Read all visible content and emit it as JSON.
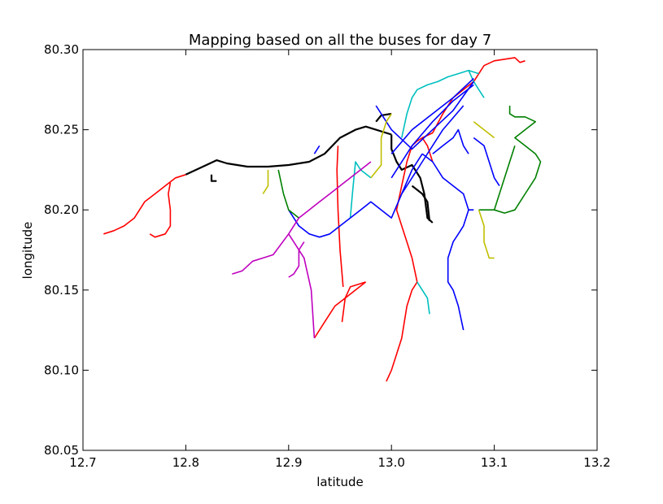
{
  "chart_data": {
    "type": "line",
    "title": "Mapping based on all the buses for day 7",
    "xlabel": "latitude",
    "ylabel": "longitude",
    "xlim": [
      12.7,
      13.2
    ],
    "ylim": [
      80.05,
      80.3
    ],
    "xticks": [
      "12.7",
      "12.8",
      "12.9",
      "13.0",
      "13.1",
      "13.2"
    ],
    "yticks": [
      "80.05",
      "80.10",
      "80.15",
      "80.20",
      "80.25",
      "80.30"
    ],
    "grid": false,
    "legend": "none",
    "series": [
      {
        "color": "#ff0000",
        "points": [
          [
            12.72,
            80.185
          ],
          [
            12.73,
            80.187
          ],
          [
            12.74,
            80.19
          ],
          [
            12.75,
            80.195
          ],
          [
            12.76,
            80.205
          ],
          [
            12.77,
            80.21
          ],
          [
            12.78,
            80.215
          ],
          [
            12.79,
            80.22
          ],
          [
            12.8,
            80.222
          ]
        ]
      },
      {
        "color": "#ff0000",
        "points": [
          [
            12.765,
            80.185
          ],
          [
            12.77,
            80.183
          ],
          [
            12.78,
            80.185
          ],
          [
            12.785,
            80.19
          ],
          [
            12.785,
            80.2
          ],
          [
            12.783,
            80.21
          ],
          [
            12.785,
            80.217
          ]
        ]
      },
      {
        "color": "#000000",
        "points": [
          [
            12.8,
            80.222
          ],
          [
            12.82,
            80.228
          ],
          [
            12.83,
            80.231
          ],
          [
            12.84,
            80.229
          ],
          [
            12.86,
            80.227
          ],
          [
            12.88,
            80.227
          ],
          [
            12.9,
            80.228
          ],
          [
            12.92,
            80.23
          ],
          [
            12.935,
            80.235
          ],
          [
            12.95,
            80.245
          ],
          [
            12.965,
            80.25
          ],
          [
            12.975,
            80.252
          ],
          [
            12.985,
            80.25
          ],
          [
            13.0,
            80.247
          ]
        ]
      },
      {
        "color": "#000000",
        "points": [
          [
            12.825,
            80.222
          ],
          [
            12.825,
            80.218
          ],
          [
            12.83,
            80.218
          ]
        ]
      },
      {
        "color": "#000000",
        "points": [
          [
            12.985,
            80.255
          ],
          [
            12.99,
            80.259
          ],
          [
            13.0,
            80.26
          ]
        ]
      },
      {
        "color": "#000000",
        "points": [
          [
            13.0,
            80.247
          ],
          [
            13.0,
            80.238
          ],
          [
            13.005,
            80.23
          ],
          [
            13.01,
            80.225
          ],
          [
            13.02,
            80.228
          ],
          [
            13.028,
            80.22
          ],
          [
            13.032,
            80.21
          ],
          [
            13.035,
            80.195
          ],
          [
            13.04,
            80.192
          ]
        ]
      },
      {
        "color": "#000000",
        "points": [
          [
            13.02,
            80.215
          ],
          [
            13.03,
            80.21
          ],
          [
            13.035,
            80.205
          ],
          [
            13.037,
            80.193
          ]
        ]
      },
      {
        "color": "#ff0000",
        "points": [
          [
            12.975,
            80.155
          ],
          [
            12.965,
            80.15
          ],
          [
            12.955,
            80.145
          ],
          [
            12.945,
            80.14
          ],
          [
            12.935,
            80.13
          ],
          [
            12.925,
            80.12
          ]
        ]
      },
      {
        "color": "#ff0000",
        "points": [
          [
            12.975,
            80.155
          ],
          [
            12.96,
            80.152
          ],
          [
            12.955,
            80.145
          ],
          [
            12.952,
            80.13
          ]
        ]
      },
      {
        "color": "#ff0000",
        "points": [
          [
            12.953,
            80.152
          ],
          [
            12.95,
            80.175
          ],
          [
            12.948,
            80.2
          ],
          [
            12.947,
            80.225
          ],
          [
            12.948,
            80.24
          ]
        ]
      },
      {
        "color": "#ff0000",
        "points": [
          [
            12.995,
            80.093
          ],
          [
            13.0,
            80.1
          ],
          [
            13.005,
            80.11
          ],
          [
            13.01,
            80.12
          ],
          [
            13.015,
            80.14
          ],
          [
            13.02,
            80.15
          ],
          [
            13.025,
            80.155
          ]
        ]
      },
      {
        "color": "#ff0000",
        "points": [
          [
            13.025,
            80.155
          ],
          [
            13.02,
            80.17
          ],
          [
            13.015,
            80.18
          ],
          [
            13.01,
            80.19
          ],
          [
            13.005,
            80.2
          ],
          [
            13.01,
            80.215
          ],
          [
            13.015,
            80.23
          ],
          [
            13.02,
            80.24
          ],
          [
            13.025,
            80.243
          ],
          [
            13.03,
            80.245
          ],
          [
            13.035,
            80.24
          ],
          [
            13.04,
            80.23
          ]
        ]
      },
      {
        "color": "#ff0000",
        "points": [
          [
            13.03,
            80.245
          ],
          [
            13.04,
            80.248
          ],
          [
            13.05,
            80.26
          ],
          [
            13.06,
            80.27
          ],
          [
            13.07,
            80.275
          ],
          [
            13.08,
            80.28
          ]
        ]
      },
      {
        "color": "#ff0000",
        "points": [
          [
            13.08,
            80.28
          ],
          [
            13.09,
            80.29
          ],
          [
            13.1,
            80.293
          ],
          [
            13.12,
            80.295
          ],
          [
            13.125,
            80.292
          ],
          [
            13.13,
            80.293
          ]
        ]
      },
      {
        "color": "#00bfbf",
        "points": [
          [
            12.98,
            80.22
          ],
          [
            12.97,
            80.225
          ],
          [
            12.965,
            80.23
          ],
          [
            12.962,
            80.21
          ],
          [
            12.96,
            80.195
          ]
        ]
      },
      {
        "color": "#00bfbf",
        "points": [
          [
            13.025,
            80.155
          ],
          [
            13.03,
            80.15
          ],
          [
            13.035,
            80.145
          ],
          [
            13.037,
            80.135
          ]
        ]
      },
      {
        "color": "#00bfbf",
        "points": [
          [
            13.01,
            80.245
          ],
          [
            13.015,
            80.26
          ],
          [
            13.02,
            80.27
          ],
          [
            13.025,
            80.275
          ],
          [
            13.035,
            80.278
          ],
          [
            13.045,
            80.28
          ],
          [
            13.055,
            80.283
          ],
          [
            13.065,
            80.285
          ],
          [
            13.075,
            80.287
          ],
          [
            13.085,
            80.285
          ]
        ]
      },
      {
        "color": "#00bfbf",
        "points": [
          [
            13.075,
            80.287
          ],
          [
            13.08,
            80.28
          ],
          [
            13.085,
            80.275
          ],
          [
            13.09,
            80.27
          ]
        ]
      },
      {
        "color": "#0000ff",
        "points": [
          [
            13.07,
            80.125
          ],
          [
            13.065,
            80.14
          ],
          [
            13.06,
            80.15
          ],
          [
            13.055,
            80.155
          ],
          [
            13.055,
            80.17
          ],
          [
            13.06,
            80.18
          ],
          [
            13.065,
            80.185
          ],
          [
            13.07,
            80.19
          ],
          [
            13.075,
            80.2
          ],
          [
            13.08,
            80.2
          ]
        ]
      },
      {
        "color": "#0000ff",
        "points": [
          [
            12.9,
            80.2
          ],
          [
            12.91,
            80.19
          ],
          [
            12.92,
            80.185
          ],
          [
            12.93,
            80.183
          ],
          [
            12.94,
            80.185
          ],
          [
            12.95,
            80.19
          ],
          [
            12.96,
            80.195
          ],
          [
            12.97,
            80.2
          ],
          [
            12.98,
            80.205
          ],
          [
            12.99,
            80.2
          ],
          [
            13.0,
            80.195
          ],
          [
            13.01,
            80.21
          ],
          [
            13.02,
            80.225
          ],
          [
            13.03,
            80.235
          ]
        ]
      },
      {
        "color": "#0000ff",
        "points": [
          [
            12.985,
            80.265
          ],
          [
            13.0,
            80.25
          ],
          [
            13.02,
            80.238
          ],
          [
            13.04,
            80.25
          ],
          [
            13.06,
            80.262
          ],
          [
            13.08,
            80.28
          ]
        ]
      },
      {
        "color": "#0000ff",
        "points": [
          [
            13.0,
            80.235
          ],
          [
            13.02,
            80.25
          ],
          [
            13.04,
            80.26
          ],
          [
            13.06,
            80.27
          ],
          [
            13.08,
            80.282
          ]
        ]
      },
      {
        "color": "#0000ff",
        "points": [
          [
            13.0,
            80.22
          ],
          [
            13.02,
            80.24
          ],
          [
            13.04,
            80.255
          ],
          [
            13.06,
            80.268
          ],
          [
            13.08,
            80.278
          ]
        ]
      },
      {
        "color": "#0000ff",
        "points": [
          [
            13.01,
            80.21
          ],
          [
            13.03,
            80.23
          ],
          [
            13.05,
            80.25
          ],
          [
            13.07,
            80.265
          ]
        ]
      },
      {
        "color": "#0000ff",
        "points": [
          [
            13.03,
            80.235
          ],
          [
            13.04,
            80.23
          ],
          [
            13.05,
            80.22
          ],
          [
            13.06,
            80.215
          ],
          [
            13.07,
            80.21
          ],
          [
            13.075,
            80.2
          ]
        ]
      },
      {
        "color": "#0000ff",
        "points": [
          [
            13.04,
            80.235
          ],
          [
            13.05,
            80.24
          ],
          [
            13.06,
            80.245
          ],
          [
            13.065,
            80.25
          ],
          [
            13.07,
            80.24
          ],
          [
            13.075,
            80.235
          ]
        ]
      },
      {
        "color": "#0000ff",
        "points": [
          [
            13.08,
            80.245
          ],
          [
            13.09,
            80.24
          ],
          [
            13.095,
            80.23
          ],
          [
            13.1,
            80.22
          ],
          [
            13.105,
            80.215
          ]
        ]
      },
      {
        "color": "#0000ff",
        "points": [
          [
            12.925,
            80.235
          ],
          [
            12.93,
            80.24
          ]
        ]
      },
      {
        "color": "#008000",
        "points": [
          [
            12.89,
            80.225
          ],
          [
            12.895,
            80.21
          ],
          [
            12.9,
            80.2
          ],
          [
            12.91,
            80.195
          ]
        ]
      },
      {
        "color": "#008000",
        "points": [
          [
            13.085,
            80.2
          ],
          [
            13.1,
            80.2
          ],
          [
            13.11,
            80.198
          ],
          [
            13.12,
            80.2
          ],
          [
            13.13,
            80.21
          ],
          [
            13.14,
            80.22
          ],
          [
            13.145,
            80.23
          ],
          [
            13.14,
            80.235
          ],
          [
            13.13,
            80.24
          ],
          [
            13.12,
            80.245
          ],
          [
            13.13,
            80.25
          ],
          [
            13.14,
            80.255
          ],
          [
            13.13,
            80.258
          ],
          [
            13.12,
            80.258
          ],
          [
            13.115,
            80.26
          ],
          [
            13.115,
            80.265
          ]
        ]
      },
      {
        "color": "#008000",
        "points": [
          [
            13.1,
            80.2
          ],
          [
            13.12,
            80.24
          ]
        ]
      },
      {
        "color": "#bfbf00",
        "points": [
          [
            12.875,
            80.21
          ],
          [
            12.88,
            80.215
          ],
          [
            12.88,
            80.225
          ]
        ]
      },
      {
        "color": "#bfbf00",
        "points": [
          [
            12.98,
            80.22
          ],
          [
            12.99,
            80.228
          ],
          [
            12.99,
            80.245
          ],
          [
            12.995,
            80.255
          ],
          [
            13.0,
            80.26
          ]
        ]
      },
      {
        "color": "#bfbf00",
        "points": [
          [
            13.085,
            80.2
          ],
          [
            13.09,
            80.19
          ],
          [
            13.09,
            80.18
          ],
          [
            13.095,
            80.17
          ],
          [
            13.1,
            80.17
          ]
        ]
      },
      {
        "color": "#bfbf00",
        "points": [
          [
            13.08,
            80.255
          ],
          [
            13.09,
            80.25
          ],
          [
            13.1,
            80.245
          ]
        ]
      },
      {
        "color": "#bf00bf",
        "points": [
          [
            12.845,
            80.16
          ],
          [
            12.855,
            80.162
          ],
          [
            12.865,
            80.168
          ],
          [
            12.875,
            80.17
          ],
          [
            12.885,
            80.172
          ],
          [
            12.9,
            80.185
          ],
          [
            12.91,
            80.195
          ],
          [
            12.92,
            80.2
          ],
          [
            12.93,
            80.205
          ],
          [
            12.94,
            80.21
          ],
          [
            12.95,
            80.215
          ],
          [
            12.96,
            80.22
          ],
          [
            12.97,
            80.225
          ],
          [
            12.98,
            80.23
          ]
        ]
      },
      {
        "color": "#bf00bf",
        "points": [
          [
            12.9,
            80.158
          ],
          [
            12.905,
            80.16
          ],
          [
            12.91,
            80.165
          ],
          [
            12.91,
            80.175
          ],
          [
            12.915,
            80.18
          ]
        ]
      },
      {
        "color": "#bf00bf",
        "points": [
          [
            12.925,
            80.12
          ],
          [
            12.922,
            80.15
          ],
          [
            12.915,
            80.17
          ],
          [
            12.905,
            80.18
          ],
          [
            12.9,
            80.185
          ]
        ]
      }
    ]
  }
}
